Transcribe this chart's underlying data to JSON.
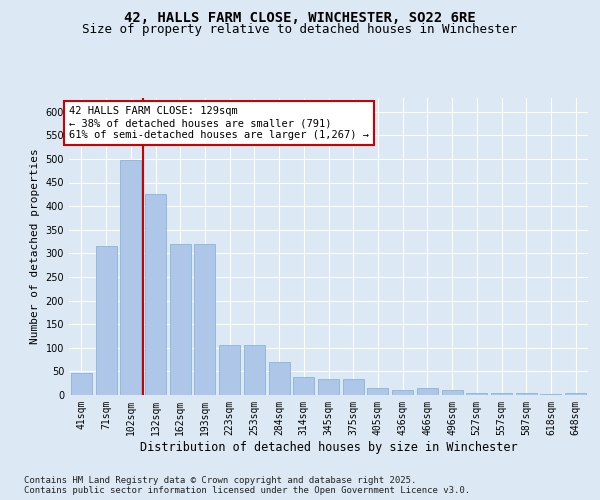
{
  "title_line1": "42, HALLS FARM CLOSE, WINCHESTER, SO22 6RE",
  "title_line2": "Size of property relative to detached houses in Winchester",
  "xlabel": "Distribution of detached houses by size in Winchester",
  "ylabel": "Number of detached properties",
  "categories": [
    "41sqm",
    "71sqm",
    "102sqm",
    "132sqm",
    "162sqm",
    "193sqm",
    "223sqm",
    "253sqm",
    "284sqm",
    "314sqm",
    "345sqm",
    "375sqm",
    "405sqm",
    "436sqm",
    "466sqm",
    "496sqm",
    "527sqm",
    "557sqm",
    "587sqm",
    "618sqm",
    "648sqm"
  ],
  "values": [
    47,
    315,
    497,
    425,
    320,
    320,
    105,
    105,
    70,
    38,
    33,
    33,
    14,
    10,
    14,
    10,
    5,
    5,
    5,
    2,
    5
  ],
  "bar_color": "#aec6e8",
  "bar_edgecolor": "#7aafd4",
  "vline_x": 2.5,
  "vline_color": "#cc0000",
  "ylim": [
    0,
    630
  ],
  "yticks": [
    0,
    50,
    100,
    150,
    200,
    250,
    300,
    350,
    400,
    450,
    500,
    550,
    600
  ],
  "background_color": "#dce9f5",
  "annotation_text": "42 HALLS FARM CLOSE: 129sqm\n← 38% of detached houses are smaller (791)\n61% of semi-detached houses are larger (1,267) →",
  "annotation_box_facecolor": "#ffffff",
  "annotation_box_edgecolor": "#cc0000",
  "footer_text": "Contains HM Land Registry data © Crown copyright and database right 2025.\nContains public sector information licensed under the Open Government Licence v3.0.",
  "title_fontsize": 10,
  "subtitle_fontsize": 9,
  "xlabel_fontsize": 8.5,
  "ylabel_fontsize": 8,
  "tick_fontsize": 7,
  "annotation_fontsize": 7.5,
  "footer_fontsize": 6.5
}
